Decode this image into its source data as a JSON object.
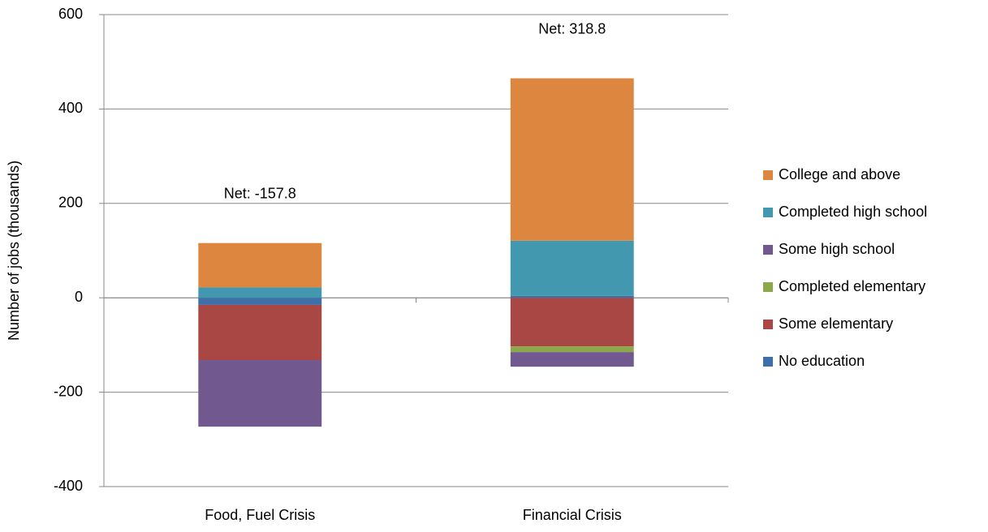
{
  "chart_data": {
    "type": "stacked-bar",
    "y_label": "Number of jobs (thousands)",
    "categories": [
      "Food, Fuel Crisis",
      "Financial Crisis"
    ],
    "annotations": [
      "Net: -157.8",
      "Net: 318.8"
    ],
    "series": [
      {
        "name": "No education",
        "color": "#3f6fa8",
        "values": [
          -15,
          4
        ]
      },
      {
        "name": "Some elementary",
        "color": "#a94744",
        "values": [
          -117,
          -103
        ]
      },
      {
        "name": "Completed elementary",
        "color": "#8ba94a",
        "values": [
          0,
          -12
        ]
      },
      {
        "name": "Some high school",
        "color": "#71588f",
        "values": [
          -141,
          -31
        ]
      },
      {
        "name": "Completed high school",
        "color": "#4198af",
        "values": [
          22,
          117
        ]
      },
      {
        "name": "College and above",
        "color": "#dd8640",
        "values": [
          94,
          344
        ]
      }
    ],
    "ylim": [
      -400,
      600
    ],
    "yticks": [
      -400,
      -200,
      0,
      200,
      400,
      600
    ],
    "grid": true,
    "legend": "right"
  }
}
